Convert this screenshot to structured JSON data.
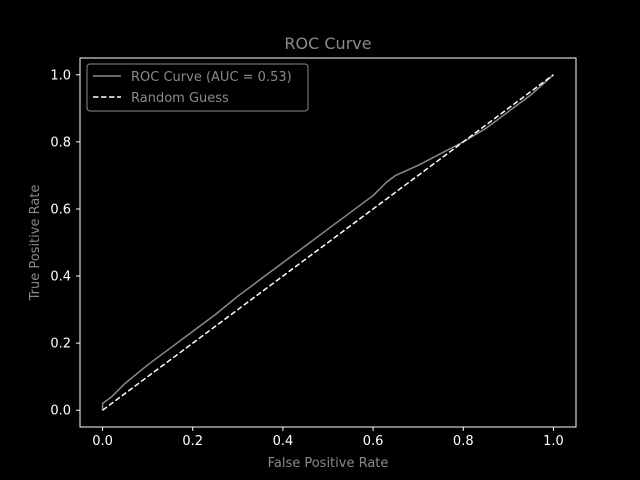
{
  "chart_data": {
    "type": "line",
    "title": "ROC Curve",
    "xlabel": "False Positive Rate",
    "ylabel": "True Positive Rate",
    "xlim": [
      -0.05,
      1.05
    ],
    "ylim": [
      -0.05,
      1.05
    ],
    "xticks": [
      0.0,
      0.2,
      0.4,
      0.6,
      0.8,
      1.0
    ],
    "yticks": [
      0.0,
      0.2,
      0.4,
      0.6,
      0.8,
      1.0
    ],
    "xtick_labels": [
      "0.0",
      "0.2",
      "0.4",
      "0.6",
      "0.8",
      "1.0"
    ],
    "ytick_labels": [
      "0.0",
      "0.2",
      "0.4",
      "0.6",
      "0.8",
      "1.0"
    ],
    "grid": false,
    "legend_position": "upper-left",
    "series": [
      {
        "name": "ROC Curve (AUC = 0.53)",
        "style": "solid",
        "color": "#8a8a8a",
        "x": [
          0.0,
          0.0,
          0.02,
          0.05,
          0.1,
          0.15,
          0.2,
          0.25,
          0.3,
          0.35,
          0.4,
          0.45,
          0.5,
          0.55,
          0.6,
          0.63,
          0.65,
          0.7,
          0.75,
          0.8,
          0.85,
          0.9,
          0.95,
          1.0
        ],
        "y": [
          0.0,
          0.02,
          0.04,
          0.08,
          0.135,
          0.185,
          0.235,
          0.285,
          0.34,
          0.39,
          0.44,
          0.49,
          0.54,
          0.59,
          0.64,
          0.68,
          0.7,
          0.73,
          0.765,
          0.8,
          0.84,
          0.89,
          0.94,
          1.0
        ]
      },
      {
        "name": "Random Guess",
        "style": "dashed",
        "color": "#ffffff",
        "x": [
          0.0,
          1.0
        ],
        "y": [
          0.0,
          1.0
        ]
      }
    ]
  }
}
